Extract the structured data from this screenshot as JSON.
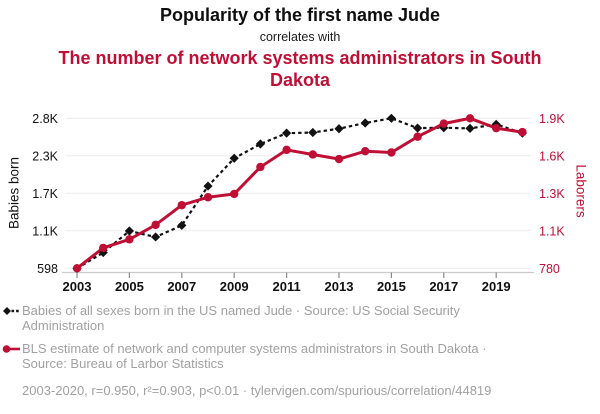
{
  "header": {
    "title": "Popularity of the first name Jude",
    "connector": "correlates with",
    "subtitle": "The number of network systems administrators in South Dakota"
  },
  "colors": {
    "accent_red": "#c00f35",
    "series_black": "#121212",
    "legend_text": "#a1a1a1",
    "gridline": "#ebebeb",
    "axis_line": "#cccccc",
    "tick_mark": "#8a8a8a"
  },
  "chart_data": {
    "type": "line",
    "title": "Popularity of the first name Jude",
    "subtitle": "The number of network systems administrators in South Dakota",
    "grid": true,
    "legend_position": "bottom",
    "x": [
      2003,
      2004,
      2005,
      2006,
      2007,
      2008,
      2009,
      2010,
      2011,
      2012,
      2013,
      2014,
      2015,
      2016,
      2017,
      2018,
      2019,
      2020
    ],
    "x_tick_labels": [
      "2003",
      "2005",
      "2007",
      "2009",
      "2011",
      "2013",
      "2015",
      "2017",
      "2019"
    ],
    "left_axis": {
      "label": "Babies born",
      "min": 598,
      "max": 2809,
      "tick_labels": [
        "2.8K",
        "2.3K",
        "1.7K",
        "1.1K",
        "598"
      ],
      "tick_values": [
        2809,
        2256,
        1704,
        1151,
        598
      ]
    },
    "right_axis": {
      "label": "Laborers",
      "min": 780,
      "max": 1920,
      "tick_labels": [
        "1.9K",
        "1.6K",
        "1.3K",
        "1.1K",
        "780"
      ],
      "tick_values": [
        1920,
        1635,
        1350,
        1065,
        780
      ]
    },
    "series": [
      {
        "name": "Babies of all sexes born in the US named Jude",
        "axis": "left",
        "color": "#121212",
        "style": "dashed",
        "marker": "diamond",
        "values": [
          598,
          830,
          1148,
          1060,
          1230,
          1810,
          2220,
          2430,
          2590,
          2600,
          2655,
          2740,
          2809,
          2665,
          2670,
          2660,
          2720,
          2590
        ]
      },
      {
        "name": "BLS estimate of network and computer systems administrators in South Dakota",
        "axis": "right",
        "color": "#c00f35",
        "style": "solid",
        "marker": "circle",
        "values": [
          780,
          935,
          1000,
          1110,
          1260,
          1320,
          1345,
          1550,
          1680,
          1645,
          1610,
          1670,
          1660,
          1780,
          1880,
          1920,
          1845,
          1815
        ]
      }
    ]
  },
  "legend": {
    "items": [
      {
        "marker": "black-diamond-dashed",
        "label": "Babies of all sexes born in the US named Jude · Source: US Social Security Administration"
      },
      {
        "marker": "red-circle-solid",
        "label": "BLS estimate of network and computer systems administrators in South Dakota · Source: Bureau of Larbor Statistics"
      }
    ],
    "footnote": "2003-2020, r=0.950, r²=0.903, p<0.01 · tylervigen.com/spurious/correlation/44819"
  }
}
